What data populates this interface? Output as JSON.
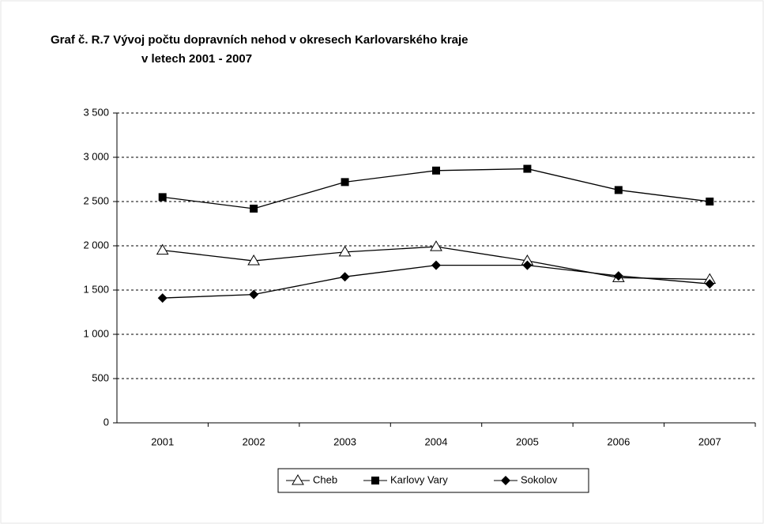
{
  "chart_data": {
    "type": "line",
    "title": [
      "Graf č. R.7 Vývoj počtu dopravních nehod v okresech Karlovarského kraje",
      "v letech 2001 - 2007"
    ],
    "categories": [
      "2001",
      "2002",
      "2003",
      "2004",
      "2005",
      "2006",
      "2007"
    ],
    "series": [
      {
        "name": "Cheb",
        "color": "#000000",
        "marker": "triangle-open",
        "values": [
          1950,
          1830,
          1930,
          1990,
          1830,
          1640,
          1620
        ]
      },
      {
        "name": "Karlovy Vary",
        "color": "#000000",
        "marker": "square",
        "values": [
          2550,
          2420,
          2720,
          2850,
          2870,
          2630,
          2500
        ]
      },
      {
        "name": "Sokolov",
        "color": "#000000",
        "marker": "diamond",
        "values": [
          1410,
          1450,
          1650,
          1780,
          1780,
          1660,
          1570
        ]
      }
    ],
    "ylim": [
      0,
      3500
    ],
    "yticks": [
      0,
      500,
      {
        "value": 1000,
        "label": "1 000"
      },
      {
        "value": 1500,
        "label": "1 500"
      },
      {
        "value": 2000,
        "label": "2 000"
      },
      {
        "value": 2500,
        "label": "2 500"
      },
      {
        "value": 3000,
        "label": "3 000"
      },
      {
        "value": 3500,
        "label": "3 500"
      }
    ],
    "grid": true,
    "legend": "bottom"
  }
}
